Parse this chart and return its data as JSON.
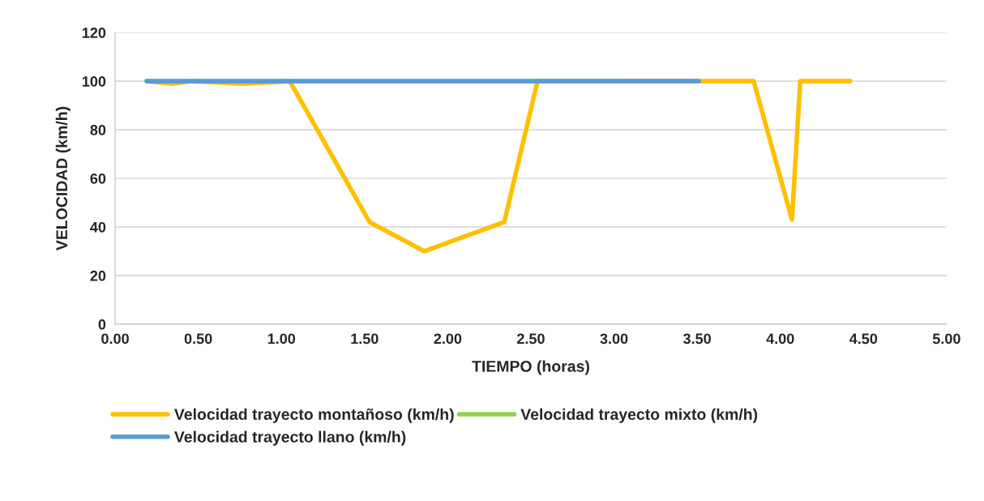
{
  "chart_data": {
    "type": "line",
    "xlabel": "TIEMPO (horas)",
    "ylabel": "VELOCIDAD (km/h)",
    "xlim": [
      0,
      5
    ],
    "xticks": [
      {
        "value": 0,
        "label": "0.00"
      },
      {
        "value": 0.5,
        "label": "0.50"
      },
      {
        "value": 1,
        "label": "1.00"
      },
      {
        "value": 1.5,
        "label": "1.50"
      },
      {
        "value": 2,
        "label": "2.00"
      },
      {
        "value": 2.5,
        "label": "2.50"
      },
      {
        "value": 3,
        "label": "3.00"
      },
      {
        "value": 3.5,
        "label": "3.50"
      },
      {
        "value": 4,
        "label": "4.00"
      },
      {
        "value": 4.5,
        "label": "4.50"
      },
      {
        "value": 5,
        "label": "5.00"
      }
    ],
    "ylim": [
      0,
      120
    ],
    "yticks": [
      0,
      20,
      40,
      60,
      80,
      100,
      120
    ],
    "grid": "y",
    "legend": "bottom",
    "marker": "none",
    "line_style": "solid",
    "series": [
      {
        "name": "Velocidad trayecto montañoso (km/h)",
        "color": "#ffc000",
        "x": [
          0.19,
          0.35,
          0.46,
          0.77,
          1.05,
          1.53,
          1.86,
          2.34,
          2.54,
          3.84,
          4.07,
          4.12,
          4.42
        ],
        "values": [
          100,
          99,
          100,
          99,
          100,
          42,
          30,
          42,
          100,
          100,
          43,
          100,
          100
        ]
      },
      {
        "name": "Velocidad trayecto mixto (km/h)",
        "color": "#92d050"
      },
      {
        "name": "Velocidad trayecto llano (km/h)",
        "color": "#5b9bd5",
        "x": [
          0.19,
          3.51
        ],
        "values": [
          100,
          100
        ]
      }
    ]
  }
}
